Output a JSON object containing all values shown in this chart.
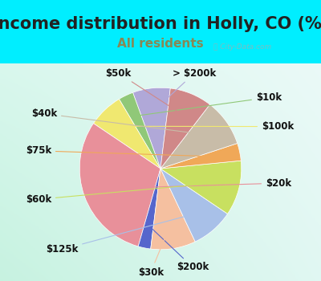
{
  "title": "Income distribution in Holly, CO (%)",
  "subtitle": "All residents",
  "title_fontsize": 15,
  "subtitle_fontsize": 11,
  "title_color": "#222222",
  "subtitle_color": "#888855",
  "background_outer": "#00eeff",
  "watermark": "City-Data.com",
  "labels": [
    "> $200k",
    "$10k",
    "$100k",
    "$20k",
    "$200k",
    "$30k",
    "$125k",
    "$60k",
    "$75k",
    "$40k",
    "$50k"
  ],
  "values": [
    7.5,
    3.0,
    7.0,
    30.0,
    2.5,
    9.0,
    8.5,
    11.0,
    3.5,
    9.5,
    8.5
  ],
  "colors": [
    "#b0a8d8",
    "#90c878",
    "#f0e870",
    "#e8909a",
    "#5566cc",
    "#f5c0a0",
    "#a8c0e8",
    "#c8e060",
    "#f0a858",
    "#c8bca8",
    "#d08888"
  ],
  "line_colors": [
    "#b0a8d8",
    "#90c878",
    "#f0e870",
    "#e8909a",
    "#5566cc",
    "#f5c0a0",
    "#a8c0e8",
    "#c8e060",
    "#f0a858",
    "#c8bca8",
    "#d08888"
  ],
  "label_fontsize": 8.5,
  "startangle": 83,
  "label_positions": {
    "> $200k": [
      0.42,
      1.18,
      "center"
    ],
    "$10k": [
      1.18,
      0.88,
      "left"
    ],
    "$100k": [
      1.25,
      0.52,
      "left"
    ],
    "$20k": [
      1.3,
      -0.18,
      "left"
    ],
    "$200k": [
      0.4,
      -1.22,
      "center"
    ],
    "$30k": [
      -0.12,
      -1.28,
      "center"
    ],
    "$125k": [
      -1.02,
      -1.0,
      "right"
    ],
    "$60k": [
      -1.35,
      -0.38,
      "right"
    ],
    "$75k": [
      -1.35,
      0.22,
      "right"
    ],
    "$40k": [
      -1.28,
      0.68,
      "right"
    ],
    "$50k": [
      -0.52,
      1.18,
      "center"
    ]
  }
}
